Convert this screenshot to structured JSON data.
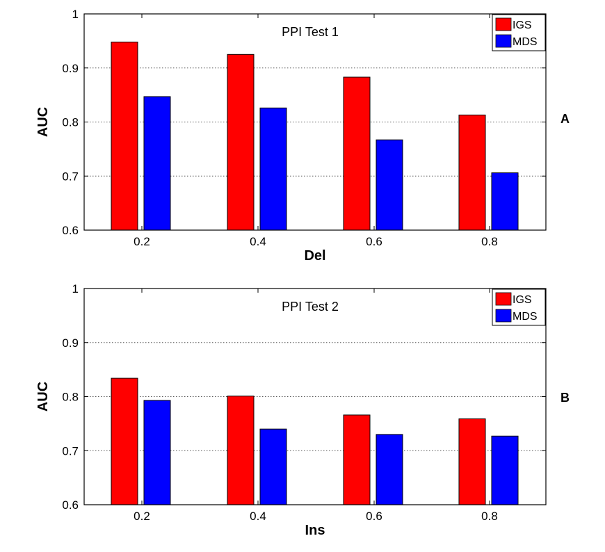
{
  "chart_data": [
    {
      "type": "bar",
      "panel_label": "A",
      "title": "PPI Test 1",
      "xlabel": "Del",
      "ylabel": "AUC",
      "categories": [
        "0.2",
        "0.4",
        "0.6",
        "0.8"
      ],
      "ylim": [
        0.6,
        1
      ],
      "yticks": [
        "0.6",
        "0.7",
        "0.8",
        "0.9",
        "1"
      ],
      "grid": "dotted-horizontal",
      "legend": "top-right",
      "series": [
        {
          "name": "IGS",
          "color": "#ff0000",
          "values": [
            0.948,
            0.925,
            0.883,
            0.813
          ]
        },
        {
          "name": "MDS",
          "color": "#0000ff",
          "values": [
            0.847,
            0.826,
            0.767,
            0.706
          ]
        }
      ]
    },
    {
      "type": "bar",
      "panel_label": "B",
      "title": "PPI Test 2",
      "xlabel": "Ins",
      "ylabel": "AUC",
      "categories": [
        "0.2",
        "0.4",
        "0.6",
        "0.8"
      ],
      "ylim": [
        0.6,
        1
      ],
      "yticks": [
        "0.6",
        "0.7",
        "0.8",
        "0.9",
        "1"
      ],
      "grid": "dotted-horizontal",
      "legend": "top-right",
      "series": [
        {
          "name": "IGS",
          "color": "#ff0000",
          "values": [
            0.834,
            0.801,
            0.766,
            0.759
          ]
        },
        {
          "name": "MDS",
          "color": "#0000ff",
          "values": [
            0.793,
            0.74,
            0.73,
            0.727
          ]
        }
      ]
    }
  ]
}
